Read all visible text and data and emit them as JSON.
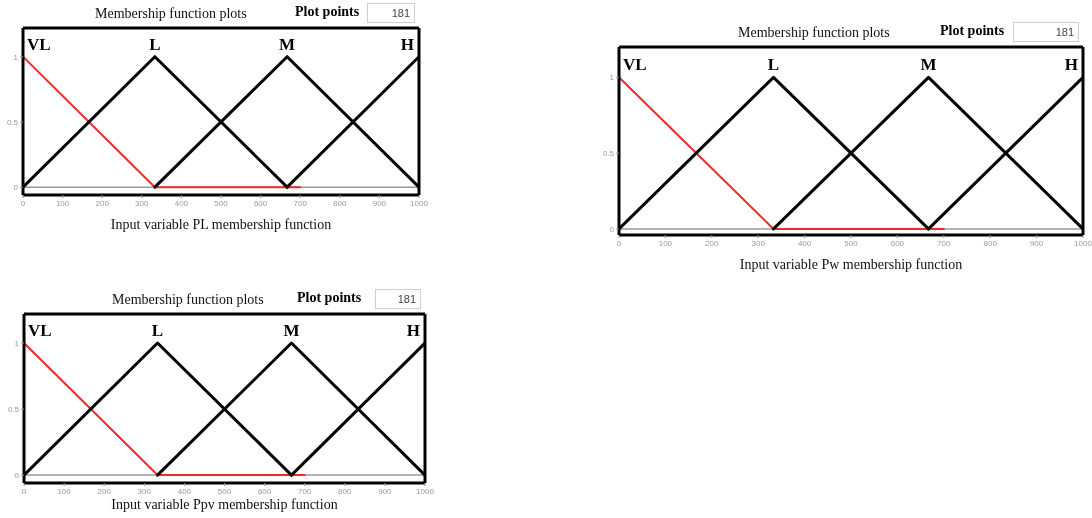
{
  "chart_data": [
    {
      "type": "line",
      "title": "Membership function plots",
      "xlabel": "Input variable PL membership function",
      "annotations": [
        "Plot points",
        "181"
      ],
      "xlim": [
        0,
        1000
      ],
      "ylim": [
        -0.06,
        1.22
      ],
      "xticks": [
        0,
        100,
        200,
        300,
        400,
        500,
        600,
        700,
        800,
        900,
        1000
      ],
      "yticks": [
        0,
        0.5,
        1
      ],
      "ref_lines": [
        {
          "axis": "y",
          "value": 0,
          "color": "#9a9a9a"
        }
      ],
      "series": [
        {
          "name": "VL",
          "color": "#ee2a2a",
          "x": [
            0,
            333,
            700
          ],
          "values": [
            1,
            0,
            0
          ]
        },
        {
          "name": "L",
          "color": "#000000",
          "x": [
            0,
            333,
            667
          ],
          "values": [
            0,
            1,
            0
          ]
        },
        {
          "name": "M",
          "color": "#000000",
          "x": [
            333,
            667,
            1000
          ],
          "values": [
            0,
            1,
            0
          ]
        },
        {
          "name": "H",
          "color": "#000000",
          "x": [
            667,
            1000
          ],
          "values": [
            0,
            1
          ]
        }
      ]
    },
    {
      "type": "line",
      "title": "Membership function plots",
      "xlabel": "Input variable Pw membership function",
      "annotations": [
        "Plot points",
        "181"
      ],
      "xlim": [
        0,
        1000
      ],
      "ylim": [
        -0.04,
        1.2
      ],
      "xticks": [
        0,
        100,
        200,
        300,
        400,
        500,
        600,
        700,
        800,
        900,
        1000
      ],
      "yticks": [
        0,
        0.5,
        1
      ],
      "ref_lines": [
        {
          "axis": "y",
          "value": 0,
          "color": "#9a9a9a"
        }
      ],
      "series": [
        {
          "name": "VL",
          "color": "#ee2a2a",
          "x": [
            0,
            333,
            700
          ],
          "values": [
            1,
            0,
            0
          ]
        },
        {
          "name": "L",
          "color": "#000000",
          "x": [
            0,
            333,
            667
          ],
          "values": [
            0,
            1,
            0
          ]
        },
        {
          "name": "M",
          "color": "#000000",
          "x": [
            333,
            667,
            1000
          ],
          "values": [
            0,
            1,
            0
          ]
        },
        {
          "name": "H",
          "color": "#000000",
          "x": [
            667,
            1000
          ],
          "values": [
            0,
            1
          ]
        }
      ]
    },
    {
      "type": "line",
      "title": "Membership function plots",
      "xlabel": "Input variable Ppv membership function",
      "annotations": [
        "Plot points",
        "181"
      ],
      "xlim": [
        0,
        1000
      ],
      "ylim": [
        -0.06,
        1.22
      ],
      "xticks": [
        0,
        100,
        200,
        300,
        400,
        500,
        600,
        700,
        800,
        900,
        1000
      ],
      "yticks": [
        0,
        0.5,
        1
      ],
      "ref_lines": [
        {
          "axis": "y",
          "value": 0,
          "color": "#9a9a9a"
        }
      ],
      "series": [
        {
          "name": "VL",
          "color": "#ee2a2a",
          "x": [
            0,
            333,
            700
          ],
          "values": [
            1,
            0,
            0
          ]
        },
        {
          "name": "L",
          "color": "#000000",
          "x": [
            0,
            333,
            667
          ],
          "values": [
            0,
            1,
            0
          ]
        },
        {
          "name": "M",
          "color": "#000000",
          "x": [
            333,
            667,
            1000
          ],
          "values": [
            0,
            1,
            0
          ]
        },
        {
          "name": "H",
          "color": "#000000",
          "x": [
            667,
            1000
          ],
          "values": [
            0,
            1
          ]
        }
      ]
    }
  ]
}
